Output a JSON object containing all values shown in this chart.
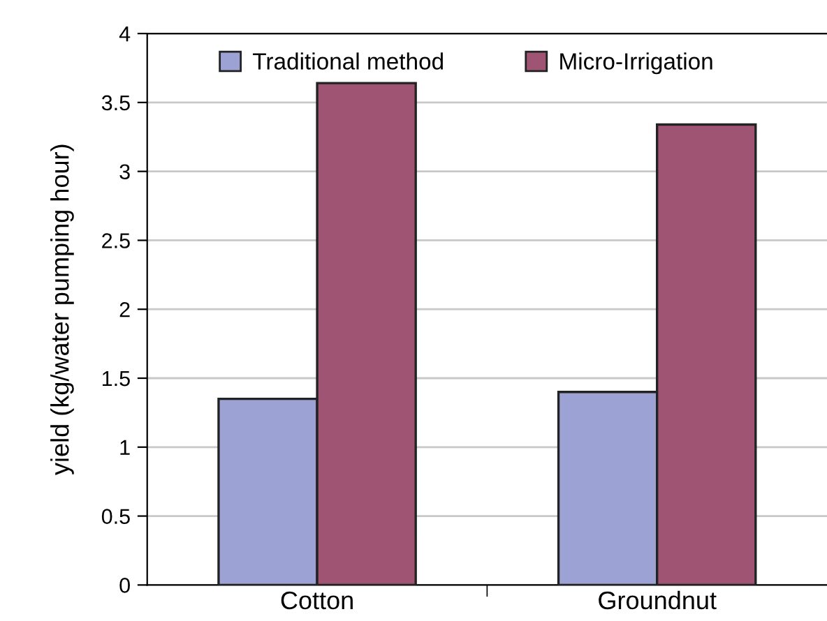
{
  "chart_data": {
    "type": "bar",
    "ylabel": "yield (kg/water pumping hour)",
    "categories": [
      "Cotton",
      "Groundnut"
    ],
    "series": [
      {
        "name": "Traditional method",
        "color": "#9ca3d4",
        "values": [
          1.35,
          1.4
        ]
      },
      {
        "name": "Micro-Irrigation",
        "color": "#a05474",
        "values": [
          3.64,
          3.34
        ]
      }
    ],
    "ylim": [
      0,
      4
    ],
    "yticks": [
      0,
      0.5,
      1,
      1.5,
      2,
      2.5,
      3,
      3.5,
      4
    ],
    "grid": "y",
    "legend": "top"
  }
}
